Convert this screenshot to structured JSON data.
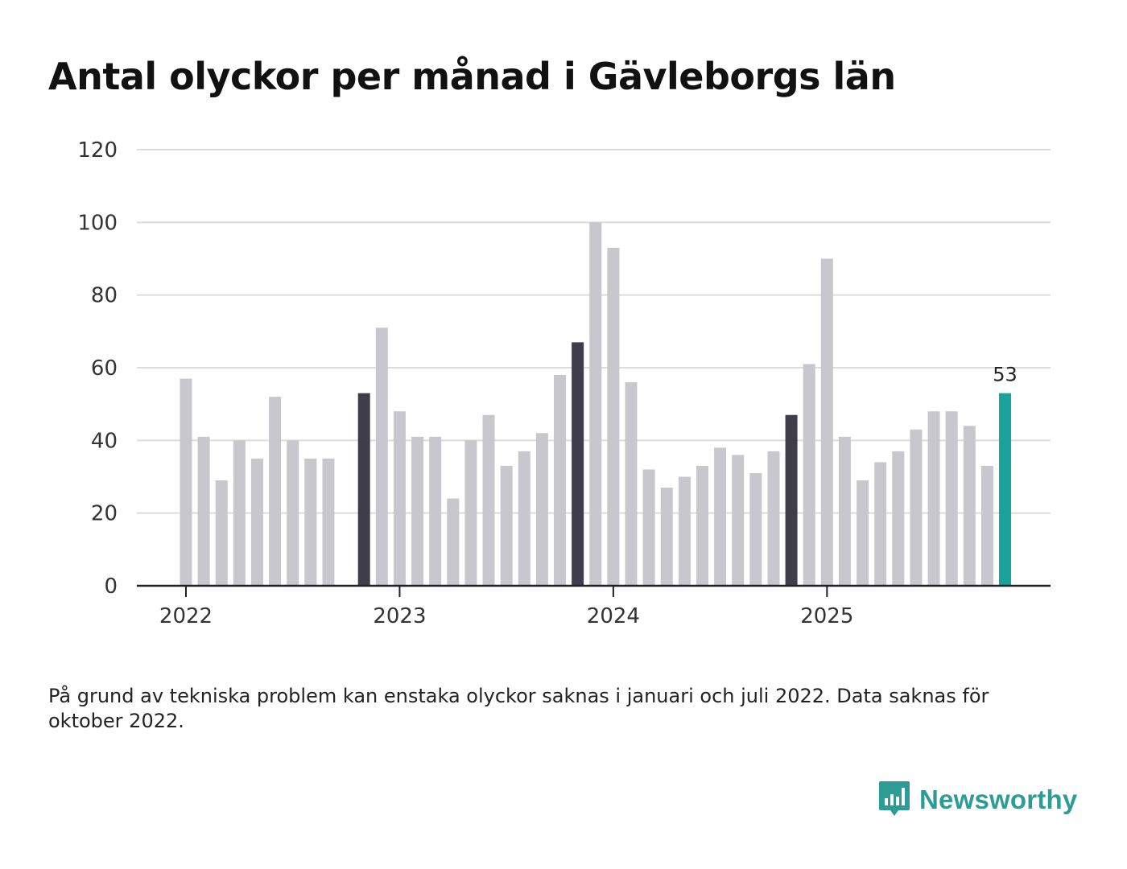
{
  "title": "Antal olyckor per månad i Gävleborgs län",
  "note": "På grund av tekniska problem kan enstaka olyckor saknas i januari och juli 2022. Data saknas för oktober 2022.",
  "brand": {
    "name": "Newsworthy",
    "logo_icon": "bar-chart-speech-bubble-icon"
  },
  "colors": {
    "regular": "#c8c7cd",
    "december": "#3f3d4a",
    "latest": "#1aa39a",
    "grid": "#dcdcdc",
    "axis": "#222222",
    "brand": "#2e9c95"
  },
  "chart_data": {
    "type": "bar",
    "title": "Antal olyckor per månad i Gävleborgs län",
    "xlabel": "",
    "ylabel": "",
    "ylim": [
      0,
      120
    ],
    "yticks": [
      0,
      20,
      40,
      60,
      80,
      100,
      120
    ],
    "year_labels": [
      {
        "label": "2022",
        "index": 0
      },
      {
        "label": "2023",
        "index": 12
      },
      {
        "label": "2024",
        "index": 24
      },
      {
        "label": "2025",
        "index": 36
      }
    ],
    "categories": [
      "2022-01",
      "2022-02",
      "2022-03",
      "2022-04",
      "2022-05",
      "2022-06",
      "2022-07",
      "2022-08",
      "2022-09",
      "2022-10",
      "2022-11",
      "2022-12",
      "2023-01",
      "2023-02",
      "2023-03",
      "2023-04",
      "2023-05",
      "2023-06",
      "2023-07",
      "2023-08",
      "2023-09",
      "2023-10",
      "2023-11",
      "2023-12",
      "2024-01",
      "2024-02",
      "2024-03",
      "2024-04",
      "2024-05",
      "2024-06",
      "2024-07",
      "2024-08",
      "2024-09",
      "2024-10",
      "2024-11",
      "2024-12",
      "2025-01",
      "2025-02",
      "2025-03",
      "2025-04",
      "2025-05",
      "2025-06",
      "2025-07",
      "2025-08",
      "2025-09",
      "2025-10",
      "2025-11"
    ],
    "values": [
      57,
      41,
      29,
      40,
      35,
      52,
      40,
      35,
      35,
      null,
      53,
      71,
      48,
      41,
      41,
      24,
      40,
      47,
      33,
      37,
      42,
      58,
      67,
      100,
      93,
      56,
      32,
      27,
      30,
      33,
      38,
      36,
      31,
      37,
      47,
      61,
      90,
      41,
      29,
      34,
      37,
      43,
      48,
      48,
      44,
      33,
      53
    ],
    "highlight_indices": [
      10,
      22,
      34
    ],
    "latest_index": 46,
    "latest_label": "53",
    "missing_note": "Data saknas för oktober 2022"
  }
}
